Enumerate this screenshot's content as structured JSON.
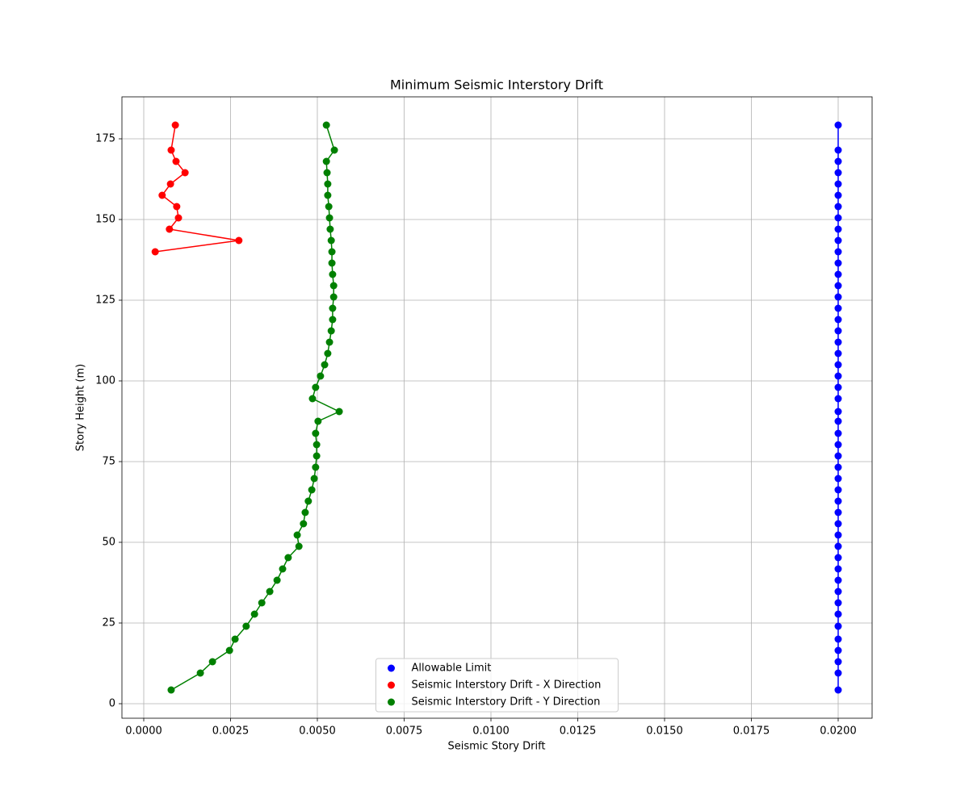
{
  "chart_data": {
    "type": "line",
    "title": "Minimum Seismic Interstory Drift",
    "x_label": "Seismic Story Drift",
    "y_label": "Story Height (m)",
    "y": [
      4.25,
      9.5,
      13,
      16.5,
      20,
      24,
      27.75,
      31.25,
      34.75,
      38.25,
      41.75,
      45.25,
      48.75,
      52.25,
      55.75,
      59.25,
      62.75,
      66.25,
      69.75,
      73.25,
      76.75,
      80.25,
      83.75,
      87.5,
      90.5,
      94.5,
      98,
      101.5,
      105,
      108.5,
      112,
      115.5,
      119,
      122.5,
      126,
      129.5,
      133,
      136.5,
      140,
      143.5,
      147,
      150.5,
      154,
      157.5,
      161,
      164.5,
      168,
      171.5,
      179.25
    ],
    "series": [
      {
        "name": "Allowable Limit",
        "color": "#0000ff",
        "values": [
          0.02,
          0.02,
          0.02,
          0.02,
          0.02,
          0.02,
          0.02,
          0.02,
          0.02,
          0.02,
          0.02,
          0.02,
          0.02,
          0.02,
          0.02,
          0.02,
          0.02,
          0.02,
          0.02,
          0.02,
          0.02,
          0.02,
          0.02,
          0.02,
          0.02,
          0.02,
          0.02,
          0.02,
          0.02,
          0.02,
          0.02,
          0.02,
          0.02,
          0.02,
          0.02,
          0.02,
          0.02,
          0.02,
          0.02,
          0.02,
          0.02,
          0.02,
          0.02,
          0.02,
          0.02,
          0.02,
          0.02,
          0.02,
          0.02
        ]
      },
      {
        "name": "Seismic Interstory Drift - X Direction",
        "color": "#ff0000",
        "values": [
          null,
          null,
          null,
          null,
          null,
          null,
          null,
          null,
          null,
          null,
          null,
          null,
          null,
          null,
          null,
          null,
          null,
          null,
          null,
          null,
          null,
          null,
          null,
          null,
          null,
          null,
          null,
          null,
          null,
          null,
          null,
          null,
          null,
          null,
          null,
          null,
          null,
          null,
          0.00033,
          0.00274,
          0.00074,
          0.001,
          0.00095,
          0.00053,
          0.00077,
          0.00119,
          0.00093,
          0.00079,
          0.00091
        ]
      },
      {
        "name": "Seismic Interstory Drift - Y Direction",
        "color": "#008000",
        "values": [
          0.00079,
          0.00163,
          0.00198,
          0.00247,
          0.00263,
          0.00295,
          0.00319,
          0.0034,
          0.00363,
          0.00384,
          0.004,
          0.00416,
          0.00447,
          0.00442,
          0.0046,
          0.00465,
          0.00474,
          0.00484,
          0.00491,
          0.00495,
          0.00498,
          0.00498,
          0.00495,
          0.00502,
          0.00563,
          0.00486,
          0.00495,
          0.00509,
          0.00521,
          0.0053,
          0.00535,
          0.0054,
          0.00544,
          0.00544,
          0.00547,
          0.00547,
          0.00544,
          0.00542,
          0.00542,
          0.0054,
          0.00537,
          0.00535,
          0.00533,
          0.0053,
          0.0053,
          0.00528,
          0.00526,
          0.00549,
          0.00526
        ]
      }
    ],
    "xlim": [
      -0.000628,
      0.020977
    ],
    "ylim": [
      -4.5,
      188
    ],
    "xticks": [
      {
        "value": 0,
        "label": "0.0000"
      },
      {
        "value": 0.0025,
        "label": "0.0025"
      },
      {
        "value": 0.005,
        "label": "0.0050"
      },
      {
        "value": 0.0075,
        "label": "0.0075"
      },
      {
        "value": 0.01,
        "label": "0.0100"
      },
      {
        "value": 0.0125,
        "label": "0.0125"
      },
      {
        "value": 0.015,
        "label": "0.0150"
      },
      {
        "value": 0.0175,
        "label": "0.0175"
      },
      {
        "value": 0.02,
        "label": "0.0200"
      }
    ],
    "yticks": [
      0,
      25,
      50,
      75,
      100,
      125,
      150,
      175
    ],
    "grid": true,
    "legend": "lower center"
  }
}
